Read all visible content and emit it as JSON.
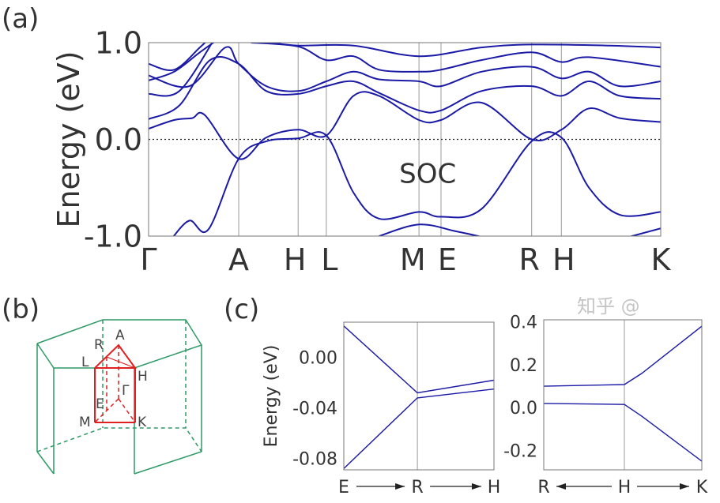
{
  "panels": {
    "a": "(a)",
    "b": "(b)",
    "c": "(c)"
  },
  "colors": {
    "band": "#1a1aa6",
    "bz": "#2e9a66",
    "ibz": "#e02020",
    "grid": "#999999"
  },
  "watermark": "知乎 @",
  "bz": {
    "labels": [
      "A",
      "R",
      "L",
      "H",
      "Γ",
      "E",
      "M",
      "K"
    ]
  },
  "chart_data": [
    {
      "type": "line",
      "title": "",
      "annotation": "SOC",
      "ylabel": "Energy (eV)",
      "xlabel": "",
      "ylim": [
        -1.0,
        1.0
      ],
      "yticks": [
        {
          "v": 1.0,
          "t": "1.0"
        },
        {
          "v": 0.0,
          "t": "0.0"
        },
        {
          "v": -1.0,
          "t": "-1.0"
        }
      ],
      "fermi_level": 0.0,
      "kpoints": [
        {
          "k": 0,
          "t": "Γ"
        },
        {
          "k": 0.176,
          "t": "A"
        },
        {
          "k": 0.292,
          "t": "H"
        },
        {
          "k": 0.347,
          "t": "L"
        },
        {
          "k": 0.528,
          "t": "M"
        },
        {
          "k": 0.571,
          "t": "E"
        },
        {
          "k": 0.748,
          "t": "R"
        },
        {
          "k": 0.806,
          "t": "H"
        },
        {
          "k": 1.0,
          "t": "K"
        }
      ],
      "series": [
        {
          "name": "band1",
          "points": [
            [
              0.046,
              -1.02
            ],
            [
              0.08,
              -0.84
            ],
            [
              0.117,
              -0.93
            ],
            [
              0.176,
              -0.2
            ],
            [
              0.23,
              -0.02
            ],
            [
              0.292,
              0.01
            ],
            [
              0.347,
              0.04
            ],
            [
              0.4,
              -0.55
            ],
            [
              0.45,
              -0.82
            ],
            [
              0.528,
              -0.75
            ],
            [
              0.571,
              -0.8
            ],
            [
              0.65,
              -0.72
            ],
            [
              0.748,
              -0.02
            ],
            [
              0.806,
              0.02
            ],
            [
              0.86,
              -0.5
            ],
            [
              0.92,
              -0.78
            ],
            [
              1.0,
              -0.75
            ]
          ]
        },
        {
          "name": "band2",
          "points": [
            [
              0,
              0.11
            ],
            [
              0.05,
              0.2
            ],
            [
              0.085,
              0.22
            ],
            [
              0.11,
              0.25
            ],
            [
              0.176,
              -0.2
            ],
            [
              0.23,
              0.02
            ],
            [
              0.292,
              0.1
            ],
            [
              0.347,
              0.04
            ],
            [
              0.4,
              0.45
            ],
            [
              0.45,
              0.45
            ],
            [
              0.528,
              0.2
            ],
            [
              0.571,
              0.2
            ],
            [
              0.65,
              0.38
            ],
            [
              0.748,
              0.0
            ],
            [
              0.806,
              0.1
            ],
            [
              0.86,
              0.32
            ],
            [
              0.92,
              0.22
            ],
            [
              1.0,
              0.18
            ]
          ]
        },
        {
          "name": "band3",
          "points": [
            [
              0,
              0.21
            ],
            [
              0.06,
              0.35
            ],
            [
              0.12,
              0.82
            ],
            [
              0.176,
              0.78
            ],
            [
              0.23,
              0.5
            ],
            [
              0.292,
              0.47
            ],
            [
              0.347,
              0.55
            ],
            [
              0.4,
              0.6
            ],
            [
              0.45,
              0.48
            ],
            [
              0.528,
              0.3
            ],
            [
              0.571,
              0.3
            ],
            [
              0.65,
              0.5
            ],
            [
              0.748,
              0.55
            ],
            [
              0.806,
              0.45
            ],
            [
              0.86,
              0.6
            ],
            [
              0.92,
              0.45
            ],
            [
              1.0,
              0.42
            ]
          ]
        },
        {
          "name": "band4",
          "points": [
            [
              0,
              0.47
            ],
            [
              0.06,
              0.5
            ],
            [
              0.13,
              1.05
            ]
          ]
        },
        {
          "name": "band5",
          "points": [
            [
              0,
              0.61
            ],
            [
              0.05,
              0.7
            ],
            [
              0.1,
              0.9
            ],
            [
              0.14,
              1.05
            ]
          ]
        },
        {
          "name": "band6",
          "points": [
            [
              0,
              0.66
            ],
            [
              0.08,
              0.55
            ],
            [
              0.15,
              0.95
            ],
            [
              0.176,
              0.78
            ],
            [
              0.23,
              0.55
            ],
            [
              0.292,
              0.5
            ],
            [
              0.347,
              0.6
            ],
            [
              0.4,
              0.7
            ],
            [
              0.45,
              0.62
            ],
            [
              0.528,
              0.6
            ],
            [
              0.571,
              0.55
            ],
            [
              0.65,
              0.7
            ],
            [
              0.748,
              0.75
            ],
            [
              0.806,
              0.63
            ],
            [
              0.86,
              0.7
            ],
            [
              0.92,
              0.55
            ],
            [
              1.0,
              0.6
            ]
          ]
        },
        {
          "name": "band7",
          "points": [
            [
              0,
              0.78
            ],
            [
              0.05,
              0.72
            ],
            [
              0.1,
              0.95
            ],
            [
              0.12,
              1.05
            ]
          ]
        },
        {
          "name": "band8",
          "points": [
            [
              0.2,
              1.0
            ],
            [
              0.292,
              0.96
            ],
            [
              0.347,
              0.82
            ],
            [
              0.4,
              0.86
            ],
            [
              0.45,
              0.72
            ],
            [
              0.528,
              0.7
            ],
            [
              0.571,
              0.72
            ],
            [
              0.65,
              0.82
            ],
            [
              0.748,
              0.9
            ],
            [
              0.806,
              0.8
            ],
            [
              0.86,
              0.85
            ],
            [
              1.0,
              0.75
            ]
          ]
        },
        {
          "name": "band9",
          "points": [
            [
              0.24,
              1.0
            ],
            [
              0.292,
              0.97
            ],
            [
              0.4,
              0.97
            ],
            [
              0.528,
              0.86
            ],
            [
              0.65,
              0.95
            ],
            [
              0.748,
              0.98
            ],
            [
              0.9,
              0.97
            ],
            [
              1.0,
              0.95
            ]
          ]
        },
        {
          "name": "band10",
          "points": [
            [
              0.45,
              -1.0
            ],
            [
              0.528,
              -0.88
            ],
            [
              0.6,
              -0.95
            ],
            [
              0.66,
              -1.02
            ]
          ]
        },
        {
          "name": "band11",
          "points": [
            [
              0.93,
              -1.02
            ],
            [
              1.0,
              -0.92
            ]
          ]
        }
      ]
    },
    {
      "type": "line",
      "ylabel": "Energy (eV)",
      "ylim": [
        -0.089,
        0.028
      ],
      "yticks": [
        {
          "v": 0.0,
          "t": "0.00"
        },
        {
          "v": -0.04,
          "t": "-0.04"
        },
        {
          "v": -0.08,
          "t": "-0.08"
        }
      ],
      "kpoints": [
        {
          "k": 0,
          "t": "E"
        },
        {
          "k": 0.49,
          "t": "R"
        },
        {
          "k": 1,
          "t": "H"
        }
      ],
      "arrows": true,
      "series": [
        {
          "name": "upper",
          "points": [
            [
              0,
              0.025
            ],
            [
              0.49,
              -0.028
            ],
            [
              1,
              -0.018
            ]
          ]
        },
        {
          "name": "lower",
          "points": [
            [
              0,
              -0.088
            ],
            [
              0.49,
              -0.032
            ],
            [
              1,
              -0.025
            ]
          ]
        }
      ]
    },
    {
      "type": "line",
      "ylabel": "",
      "ylim": [
        -0.29,
        0.41
      ],
      "yticks": [
        {
          "v": 0.4,
          "t": "0.4"
        },
        {
          "v": 0.2,
          "t": "0.2"
        },
        {
          "v": 0.0,
          "t": "0.0"
        },
        {
          "v": -0.2,
          "t": "-0.2"
        }
      ],
      "kpoints": [
        {
          "k": 0,
          "t": "R"
        },
        {
          "k": 0.51,
          "t": "H"
        },
        {
          "k": 1,
          "t": "K"
        }
      ],
      "arrows": true,
      "series": [
        {
          "name": "upper",
          "points": [
            [
              0,
              0.1
            ],
            [
              0.51,
              0.108
            ],
            [
              0.62,
              0.16
            ],
            [
              1,
              0.38
            ]
          ]
        },
        {
          "name": "lower",
          "points": [
            [
              0,
              0.02
            ],
            [
              0.51,
              0.015
            ],
            [
              0.62,
              -0.04
            ],
            [
              1,
              -0.25
            ]
          ]
        }
      ]
    }
  ]
}
